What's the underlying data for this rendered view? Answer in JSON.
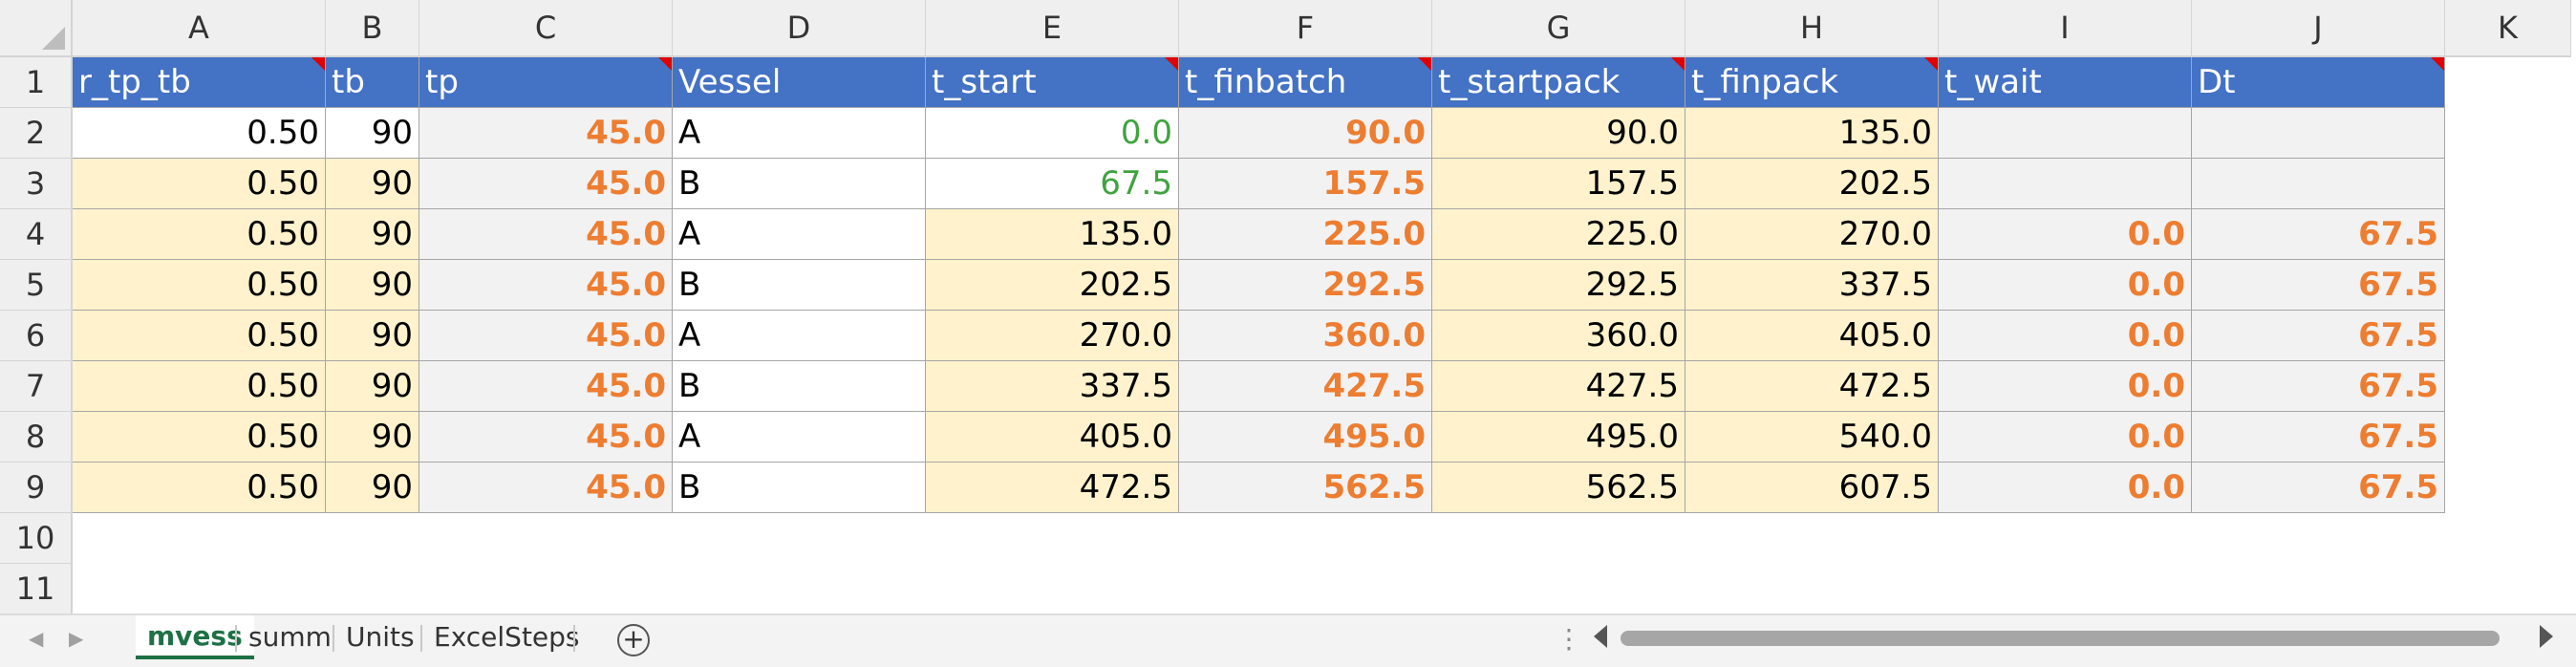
{
  "columns": [
    "A",
    "B",
    "C",
    "D",
    "E",
    "F",
    "G",
    "H",
    "I",
    "J",
    "K"
  ],
  "rows": [
    "1",
    "2",
    "3",
    "4",
    "5",
    "6",
    "7",
    "8",
    "9",
    "10",
    "11"
  ],
  "headers": [
    "r_tp_tb",
    "tb",
    "tp",
    "Vessel",
    "t_start",
    "t_finbatch",
    "t_startpack",
    "t_finpack",
    "t_wait",
    "Dt"
  ],
  "data": [
    [
      "0.50",
      "90",
      "45.0",
      "A",
      "0.0",
      "90.0",
      "90.0",
      "135.0",
      "",
      ""
    ],
    [
      "0.50",
      "90",
      "45.0",
      "B",
      "67.5",
      "157.5",
      "157.5",
      "202.5",
      "",
      ""
    ],
    [
      "0.50",
      "90",
      "45.0",
      "A",
      "135.0",
      "225.0",
      "225.0",
      "270.0",
      "0.0",
      "67.5"
    ],
    [
      "0.50",
      "90",
      "45.0",
      "B",
      "202.5",
      "292.5",
      "292.5",
      "337.5",
      "0.0",
      "67.5"
    ],
    [
      "0.50",
      "90",
      "45.0",
      "A",
      "270.0",
      "360.0",
      "360.0",
      "405.0",
      "0.0",
      "67.5"
    ],
    [
      "0.50",
      "90",
      "45.0",
      "B",
      "337.5",
      "427.5",
      "427.5",
      "472.5",
      "0.0",
      "67.5"
    ],
    [
      "0.50",
      "90",
      "45.0",
      "A",
      "405.0",
      "495.0",
      "495.0",
      "540.0",
      "0.0",
      "67.5"
    ],
    [
      "0.50",
      "90",
      "45.0",
      "B",
      "472.5",
      "562.5",
      "562.5",
      "607.5",
      "0.0",
      "67.5"
    ]
  ],
  "sheet_tabs": [
    "mvess",
    "summ",
    "Units",
    "ExcelSteps"
  ],
  "active_sheet": "mvess",
  "icons": {
    "add_sheet": "plus-circle-icon",
    "prev": "chevron-left-icon",
    "next": "chevron-right-icon",
    "options": "vertical-dots-icon"
  },
  "colors": {
    "header_bg": "#4472c4",
    "input_yellow": "#fff2cc",
    "formula_gray": "#f2f2f2",
    "orange_text": "#ed7d31",
    "green_text": "#3fa33f",
    "comment_marker": "#e00000",
    "active_tab": "#1e7145"
  }
}
